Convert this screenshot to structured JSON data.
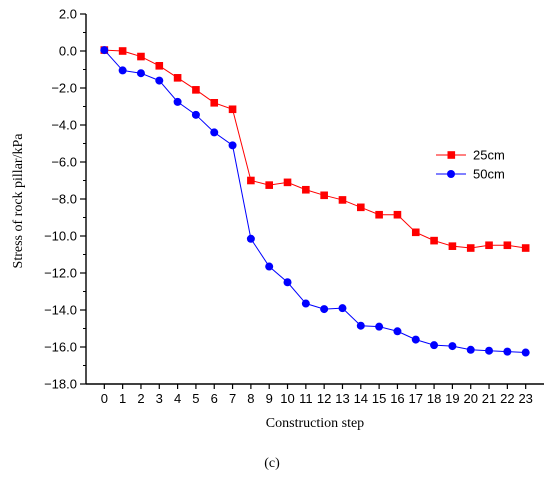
{
  "chart_data": {
    "type": "line",
    "title": "",
    "xlabel": "Construction step",
    "ylabel": "Stress of rock pillar/kPa",
    "panel_label": "(c)",
    "x": [
      0,
      1,
      2,
      3,
      4,
      5,
      6,
      7,
      8,
      9,
      10,
      11,
      12,
      13,
      14,
      15,
      16,
      17,
      18,
      19,
      20,
      21,
      22,
      23
    ],
    "xlim": [
      -1,
      24
    ],
    "ylim": [
      -18,
      2
    ],
    "y_ticks": [
      2.0,
      0.0,
      -2.0,
      -4.0,
      -6.0,
      -8.0,
      -10.0,
      -12.0,
      -14.0,
      -16.0,
      -18.0
    ],
    "y_tick_labels": [
      "2.0",
      "0.0",
      "−2.0",
      "−4.0",
      "−6.0",
      "−8.0",
      "−10.0",
      "−12.0",
      "−14.0",
      "−16.0",
      "−18.0"
    ],
    "x_tick_labels": [
      "0",
      "1",
      "2",
      "3",
      "4",
      "5",
      "6",
      "7",
      "8",
      "9",
      "10",
      "11",
      "12",
      "13",
      "14",
      "15",
      "16",
      "17",
      "18",
      "19",
      "20",
      "21",
      "22",
      "23"
    ],
    "grid": false,
    "legend_position": "right",
    "series": [
      {
        "name": "25cm",
        "color": "#ff0000",
        "marker": "square",
        "values": [
          0.05,
          0.0,
          -0.3,
          -0.8,
          -1.45,
          -2.1,
          -2.8,
          -3.15,
          -7.0,
          -7.25,
          -7.1,
          -7.5,
          -7.8,
          -8.05,
          -8.45,
          -8.85,
          -8.85,
          -9.8,
          -10.25,
          -10.55,
          -10.65,
          -10.5,
          -10.5,
          -10.65
        ]
      },
      {
        "name": "50cm",
        "color": "#0000ff",
        "marker": "circle",
        "values": [
          0.05,
          -1.05,
          -1.2,
          -1.6,
          -2.75,
          -3.45,
          -4.4,
          -5.1,
          -10.15,
          -11.65,
          -12.5,
          -13.65,
          -13.95,
          -13.9,
          -14.85,
          -14.9,
          -15.15,
          -15.6,
          -15.9,
          -15.95,
          -16.15,
          -16.2,
          -16.25,
          -16.3
        ]
      }
    ]
  }
}
